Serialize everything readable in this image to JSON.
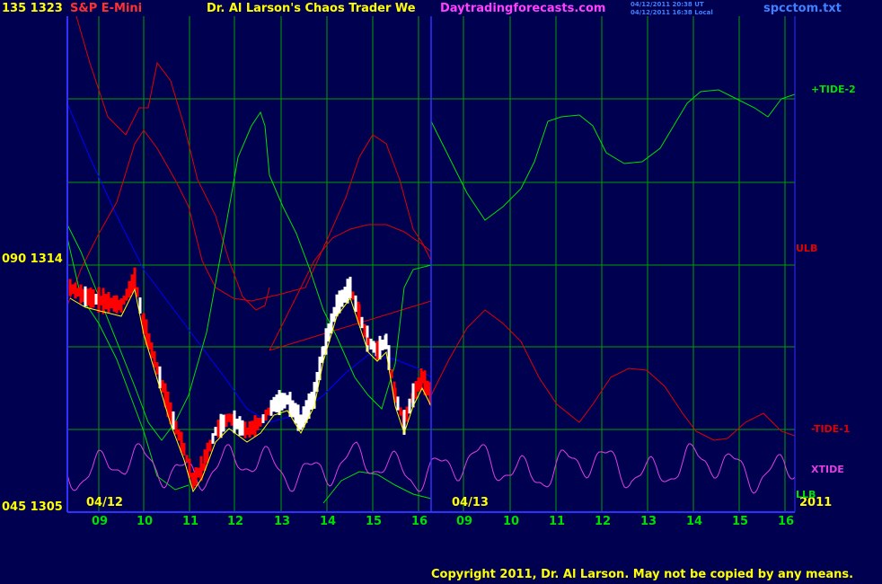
{
  "header": {
    "y_top_label": "135 1323",
    "instrument": "S&P E-Mini",
    "site_title": "Dr. Al Larson's Chaos Trader We",
    "site_url": "Daytradingforecasts.com",
    "timestamp_ut": "04/12/2011 20:38 UT",
    "timestamp_local": "04/12/2011 16:38 Local",
    "file_name": "spcctom.txt"
  },
  "y_labels": {
    "top": "135 1323",
    "mid": "090 1314",
    "bottom": "045 1305"
  },
  "dates": {
    "day1": "04/12",
    "day2": "04/13",
    "year": "2011"
  },
  "x_ticks": [
    "09",
    "10",
    "11",
    "12",
    "13",
    "14",
    "15",
    "16",
    "09",
    "10",
    "11",
    "12",
    "13",
    "14",
    "15",
    "16"
  ],
  "right_labels": {
    "tide2": "+TIDE-2",
    "ulb": "ULB",
    "tide1": "-TIDE-1",
    "xtide": "XTIDE",
    "llb": "LLB"
  },
  "copyright": "Copyright 2011, Dr. Al Larson. May not be copied by any means.",
  "colors": {
    "background": "#000050",
    "grid": "#00a000",
    "axis": "#3030ff",
    "tide2": "#00e000",
    "ulb": "#e00000",
    "xtide": "#e040e0",
    "llb": "#00e000",
    "price_up": "#ffffff",
    "price_down": "#ff0000",
    "moving_average": "#ffff00",
    "blue_curve": "#0000ff",
    "url": "#ff40ff",
    "header_text": "#ffff00",
    "instrument": "#ff3030",
    "file": "#4080ff"
  },
  "chart_data": {
    "type": "line",
    "y_axis_labels": [
      "135 1323",
      "090 1314",
      "045 1305"
    ],
    "x_ticks": [
      "09",
      "10",
      "11",
      "12",
      "13",
      "14",
      "15",
      "16",
      "09",
      "10",
      "11",
      "12",
      "13",
      "14",
      "15",
      "16"
    ],
    "dates": [
      "04/12",
      "04/13"
    ],
    "price_range": [
      1305,
      1323
    ],
    "grid": true,
    "series": [
      {
        "name": "+TIDE-2"
      },
      {
        "name": "ULB"
      },
      {
        "name": "-TIDE-1"
      },
      {
        "name": "XTIDE"
      },
      {
        "name": "LLB"
      }
    ]
  }
}
